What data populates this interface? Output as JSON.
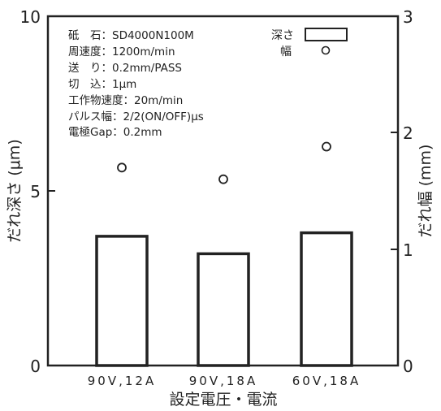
{
  "chart_data": {
    "type": "bar",
    "categories": [
      "90V,12A",
      "90V,18A",
      "60V,18A"
    ],
    "xlabel": "設定電圧・電流",
    "y_left": {
      "label": "だれ深さ (μm)",
      "lim": [
        0,
        10
      ],
      "ticks": [
        "0",
        "5",
        "10"
      ]
    },
    "y_right": {
      "label": "だれ幅 (mm)",
      "lim": [
        0,
        3
      ],
      "ticks": [
        "0",
        "1",
        "2",
        "3"
      ]
    },
    "series": [
      {
        "name": "深さ",
        "kind": "bar",
        "axis": "left",
        "values": [
          3.7,
          3.2,
          3.8
        ]
      },
      {
        "name": "幅",
        "kind": "scatter",
        "axis": "right",
        "values": [
          1.7,
          1.6,
          1.88
        ]
      }
    ],
    "conditions": [
      "砥　石：SD4000N100M",
      "周速度：1200m/min",
      "送　り：0.2mm/PASS",
      "切　込：1μm",
      "工作物速度：20m/min",
      "パルス幅：2/2(ON/OFF)μs",
      "電極Gap：0.2mm"
    ],
    "legend": {
      "position": "top-right",
      "items": [
        {
          "label": "深さ",
          "marker": "bar"
        },
        {
          "label": "幅",
          "marker": "circle"
        }
      ]
    },
    "grid": false
  }
}
